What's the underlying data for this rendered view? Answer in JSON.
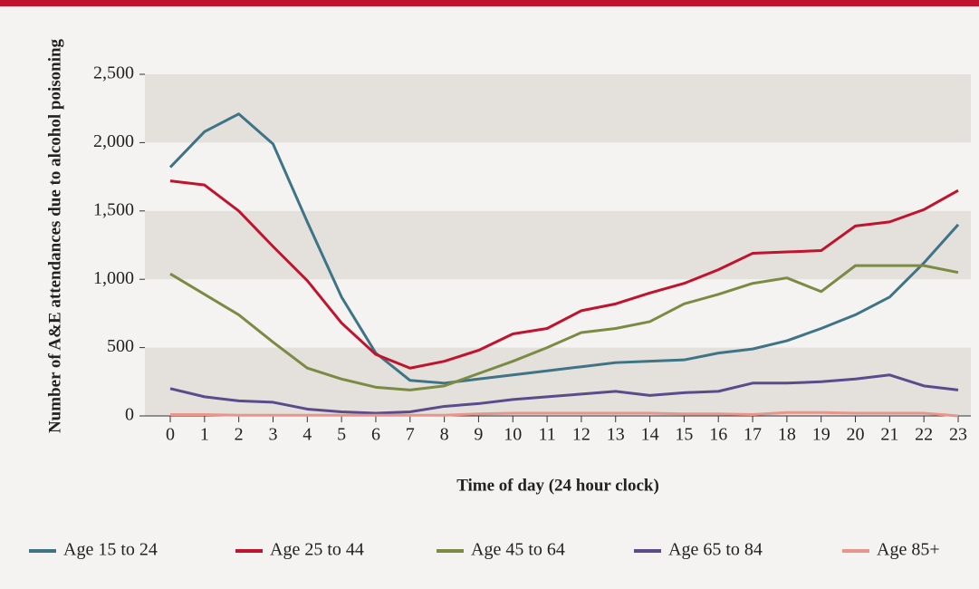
{
  "chart_data": {
    "type": "line",
    "x_label": "Time of day (24 hour clock)",
    "y_label": "Number of A&E attendances due to alcohol poisoning",
    "categories": [
      "0",
      "1",
      "2",
      "3",
      "4",
      "5",
      "6",
      "7",
      "8",
      "9",
      "10",
      "11",
      "12",
      "13",
      "14",
      "15",
      "16",
      "17",
      "18",
      "19",
      "20",
      "21",
      "22",
      "23"
    ],
    "series": [
      {
        "name": "Age 15 to 24",
        "color": "#3e7486",
        "values": [
          1820,
          2080,
          2210,
          1990,
          1420,
          870,
          460,
          260,
          240,
          270,
          300,
          330,
          360,
          390,
          400,
          410,
          460,
          490,
          550,
          640,
          740,
          870,
          1120,
          1400
        ]
      },
      {
        "name": "Age 25 to 44",
        "color": "#c0132e",
        "values": [
          1720,
          1690,
          1500,
          1240,
          990,
          680,
          450,
          350,
          400,
          480,
          600,
          640,
          770,
          820,
          900,
          970,
          1070,
          1190,
          1200,
          1210,
          1390,
          1420,
          1510,
          1650
        ]
      },
      {
        "name": "Age 45 to 64",
        "color": "#7b8b43",
        "values": [
          1040,
          890,
          740,
          540,
          350,
          270,
          210,
          190,
          220,
          310,
          400,
          500,
          610,
          640,
          690,
          820,
          890,
          970,
          1010,
          910,
          1100,
          1100,
          1100,
          1050
        ]
      },
      {
        "name": "Age 65 to 84",
        "color": "#5b4b8c",
        "values": [
          200,
          140,
          110,
          100,
          50,
          30,
          20,
          30,
          70,
          90,
          120,
          140,
          160,
          180,
          150,
          170,
          180,
          240,
          240,
          250,
          270,
          300,
          220,
          190
        ]
      },
      {
        "name": "Age 85+",
        "color": "#e8958c",
        "values": [
          10,
          10,
          5,
          5,
          5,
          5,
          5,
          5,
          5,
          15,
          20,
          20,
          20,
          20,
          20,
          15,
          15,
          10,
          25,
          25,
          20,
          20,
          20,
          0
        ]
      }
    ],
    "ylim": [
      0,
      2500
    ],
    "yticks": [
      0,
      500,
      {
        "value": 1000,
        "label": "1,000"
      },
      {
        "value": 1500,
        "label": "1,500"
      },
      {
        "value": 2000,
        "label": "2,000"
      },
      {
        "value": 2500,
        "label": "2,500"
      }
    ],
    "shaded_bands": true,
    "legend": "bottom"
  }
}
